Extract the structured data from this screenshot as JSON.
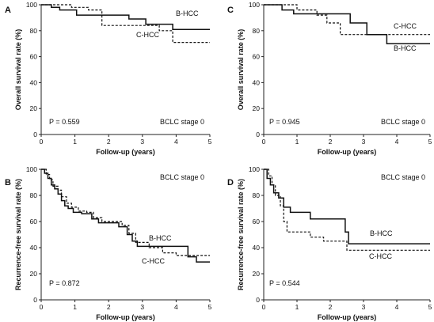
{
  "chart_data": [
    {
      "type": "line",
      "panel_letter": "A",
      "xlabel": "Follow-up (years)",
      "ylabel": "Overall survival rate (%)",
      "xlim": [
        0,
        5
      ],
      "ylim": [
        0,
        100
      ],
      "xticks": [
        0,
        1,
        2,
        3,
        4,
        5
      ],
      "yticks": [
        0,
        20,
        40,
        60,
        80,
        100
      ],
      "p_value": "P = 0.559",
      "stage_label": "BCLC stage 0",
      "legend_placement": "right, next to curves",
      "series": [
        {
          "name": "B-HCC",
          "style": "solid",
          "x": [
            0,
            0.3,
            0.3,
            0.55,
            0.55,
            1.05,
            1.05,
            2.6,
            2.6,
            3.1,
            3.1,
            3.9,
            3.9,
            5
          ],
          "y": [
            100,
            100,
            98,
            98,
            96,
            96,
            92,
            92,
            89,
            89,
            85,
            85,
            81,
            81
          ]
        },
        {
          "name": "C-HCC",
          "style": "dashed",
          "x": [
            0,
            0.9,
            0.9,
            1.4,
            1.4,
            1.8,
            1.8,
            3.1,
            3.1,
            3.5,
            3.5,
            3.9,
            3.9,
            5
          ],
          "y": [
            100,
            100,
            98,
            98,
            96,
            96,
            84,
            84,
            84,
            84,
            80,
            80,
            71,
            71
          ]
        }
      ]
    },
    {
      "type": "line",
      "panel_letter": "C",
      "xlabel": "Follow-up (years)",
      "ylabel": "Overall survival rate (%)",
      "xlim": [
        0,
        5
      ],
      "ylim": [
        0,
        100
      ],
      "xticks": [
        0,
        1,
        2,
        3,
        4,
        5
      ],
      "yticks": [
        0,
        20,
        40,
        60,
        80,
        100
      ],
      "p_value": "P = 0.945",
      "stage_label": "BCLC stage 0",
      "legend_placement": "right, next to curves",
      "series": [
        {
          "name": "B-HCC",
          "style": "solid",
          "x": [
            0,
            0.55,
            0.55,
            0.9,
            0.9,
            2.6,
            2.6,
            3.1,
            3.1,
            3.7,
            3.7,
            5
          ],
          "y": [
            100,
            100,
            96,
            96,
            93,
            93,
            86,
            86,
            77,
            77,
            70,
            70
          ]
        },
        {
          "name": "C-HCC",
          "style": "dashed",
          "x": [
            0,
            1.0,
            1.0,
            1.6,
            1.6,
            1.9,
            1.9,
            2.3,
            2.3,
            3.4,
            3.4,
            5
          ],
          "y": [
            100,
            100,
            96,
            96,
            92,
            92,
            86,
            86,
            77,
            77,
            77,
            77
          ]
        }
      ]
    },
    {
      "type": "line",
      "panel_letter": "B",
      "xlabel": "Follow-up (years)",
      "ylabel": "Recurrence-free survival rate (%)",
      "xlim": [
        0,
        5
      ],
      "ylim": [
        0,
        100
      ],
      "xticks": [
        0,
        1,
        2,
        3,
        4,
        5
      ],
      "yticks": [
        0,
        20,
        40,
        60,
        80,
        100
      ],
      "p_value": "P = 0.872",
      "stage_label": "BCLC stage 0",
      "legend_placement": "right, next to curves",
      "series": [
        {
          "name": "B-HCC",
          "style": "solid",
          "x": [
            0,
            0.1,
            0.1,
            0.2,
            0.2,
            0.3,
            0.3,
            0.4,
            0.4,
            0.5,
            0.5,
            0.6,
            0.6,
            0.7,
            0.7,
            0.8,
            0.8,
            0.95,
            0.95,
            1.2,
            1.2,
            1.5,
            1.5,
            1.7,
            1.7,
            2.3,
            2.3,
            2.55,
            2.55,
            2.7,
            2.7,
            2.85,
            2.85,
            3.6,
            3.6,
            4.35,
            4.35,
            4.6,
            4.6,
            5
          ],
          "y": [
            100,
            100,
            97,
            97,
            93,
            93,
            88,
            88,
            85,
            85,
            81,
            81,
            76,
            76,
            72,
            72,
            70,
            70,
            67,
            67,
            66,
            66,
            62,
            62,
            59,
            59,
            56,
            56,
            50,
            50,
            45,
            45,
            41,
            41,
            41,
            41,
            33,
            33,
            29,
            29
          ]
        },
        {
          "name": "C-HCC",
          "style": "dashed",
          "x": [
            0,
            0.15,
            0.15,
            0.25,
            0.25,
            0.35,
            0.35,
            0.5,
            0.5,
            0.6,
            0.6,
            0.75,
            0.75,
            0.9,
            0.9,
            1.1,
            1.1,
            1.35,
            1.35,
            1.55,
            1.55,
            1.8,
            1.8,
            2.4,
            2.4,
            2.6,
            2.6,
            2.8,
            2.8,
            3.2,
            3.2,
            3.6,
            3.6,
            4.0,
            4.0,
            5
          ],
          "y": [
            100,
            100,
            96,
            96,
            92,
            92,
            87,
            87,
            84,
            84,
            79,
            79,
            74,
            74,
            71,
            71,
            68,
            68,
            67,
            67,
            63,
            63,
            60,
            60,
            57,
            57,
            51,
            51,
            44,
            44,
            40,
            40,
            36,
            36,
            34,
            34
          ]
        }
      ]
    },
    {
      "type": "line",
      "panel_letter": "D",
      "xlabel": "Follow-up (years)",
      "ylabel": "Recurrence-free survival rate (%)",
      "xlim": [
        0,
        5
      ],
      "ylim": [
        0,
        100
      ],
      "xticks": [
        0,
        1,
        2,
        3,
        4,
        5
      ],
      "yticks": [
        0,
        20,
        40,
        60,
        80,
        100
      ],
      "p_value": "P = 0.544",
      "stage_label": "BCLC stage 0",
      "legend_placement": "right, next to curves",
      "series": [
        {
          "name": "B-HCC",
          "style": "solid",
          "x": [
            0,
            0.1,
            0.1,
            0.2,
            0.2,
            0.3,
            0.3,
            0.45,
            0.45,
            0.6,
            0.6,
            0.8,
            0.8,
            1.4,
            1.4,
            2.45,
            2.45,
            2.55,
            2.55,
            5
          ],
          "y": [
            100,
            100,
            93,
            93,
            88,
            88,
            82,
            82,
            78,
            78,
            71,
            71,
            67,
            67,
            62,
            62,
            52,
            52,
            43,
            43
          ]
        },
        {
          "name": "C-HCC",
          "style": "dashed",
          "x": [
            0,
            0.15,
            0.15,
            0.25,
            0.25,
            0.35,
            0.35,
            0.5,
            0.5,
            0.6,
            0.6,
            0.7,
            0.7,
            1.4,
            1.4,
            1.8,
            1.8,
            2.5,
            2.5,
            5
          ],
          "y": [
            100,
            100,
            95,
            95,
            88,
            88,
            80,
            80,
            72,
            72,
            60,
            60,
            52,
            52,
            48,
            48,
            45,
            45,
            38,
            38
          ]
        }
      ]
    }
  ]
}
